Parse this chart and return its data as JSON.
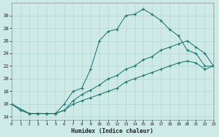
{
  "xlabel": "Humidex (Indice chaleur)",
  "bg_color": "#ceeae6",
  "line_color": "#1a7a6e",
  "grid_color": "#b0d4d0",
  "curve1_x": [
    0,
    1,
    2,
    3,
    4,
    5,
    6,
    7,
    8,
    9,
    10,
    11,
    12,
    13,
    14,
    15,
    16,
    17,
    18,
    19,
    20,
    21,
    22,
    23
  ],
  "curve1_y": [
    16,
    15,
    14.5,
    14.5,
    14.5,
    14.5,
    16.0,
    18.0,
    18.5,
    21.5,
    26.0,
    27.5,
    27.8,
    30.0,
    30.2,
    31.0,
    30.2,
    29.2,
    27.8,
    26.8,
    24.5,
    24.0,
    22.0,
    22.0
  ],
  "curve2_x": [
    0,
    2,
    3,
    4,
    5,
    6,
    7,
    8,
    9,
    10,
    11,
    12,
    13,
    14,
    15,
    16,
    17,
    18,
    19,
    20,
    21,
    22,
    23
  ],
  "curve2_y": [
    16,
    14.5,
    14.5,
    14.5,
    14.5,
    15.0,
    16.5,
    17.5,
    18.2,
    19.0,
    20.0,
    20.5,
    21.5,
    22.0,
    23.0,
    23.5,
    24.5,
    25.0,
    25.5,
    26.0,
    25.0,
    24.0,
    22.0
  ],
  "curve3_x": [
    0,
    2,
    3,
    4,
    5,
    6,
    7,
    8,
    9,
    10,
    11,
    12,
    13,
    14,
    15,
    16,
    17,
    18,
    19,
    20,
    21,
    22,
    23
  ],
  "curve3_y": [
    16,
    14.5,
    14.5,
    14.5,
    14.5,
    15.0,
    16.0,
    16.5,
    17.0,
    17.5,
    18.0,
    18.5,
    19.5,
    20.0,
    20.5,
    21.0,
    21.5,
    22.0,
    22.5,
    22.8,
    22.5,
    21.5,
    22.0
  ],
  "xlim": [
    0,
    23
  ],
  "ylim": [
    13.5,
    32
  ],
  "yticks": [
    14,
    16,
    18,
    20,
    22,
    24,
    26,
    28,
    30
  ],
  "xticks": [
    0,
    1,
    2,
    3,
    4,
    5,
    6,
    7,
    8,
    9,
    10,
    11,
    12,
    13,
    14,
    15,
    16,
    17,
    18,
    19,
    20,
    21,
    22,
    23
  ]
}
